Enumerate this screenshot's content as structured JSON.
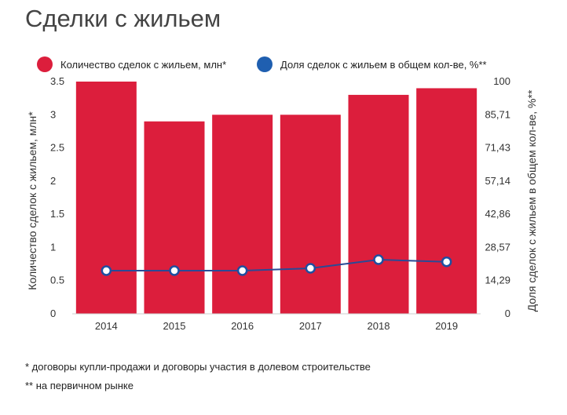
{
  "title": "Сделки с жильем",
  "footnotes": [
    "* договоры купли-продажи и договоры участия в долевом строительстве",
    "** на первичном рынке"
  ],
  "colors": {
    "bar": "#dc1e3c",
    "line": "#2a4a96",
    "marker_fill": "#ffffff",
    "marker_stroke": "#1f4fa0",
    "legend_dot_line": "#1f5fb0"
  },
  "chart_data": {
    "type": "bar",
    "categories": [
      "2014",
      "2015",
      "2016",
      "2017",
      "2018",
      "2019"
    ],
    "series": [
      {
        "name": "Количество сделок с жильем, млн*",
        "type": "bar",
        "axis": "left",
        "values": [
          3.5,
          2.9,
          3.0,
          3.0,
          3.3,
          3.4
        ]
      },
      {
        "name": "Доля сделок с жильем в общем кол-ве, %**",
        "type": "line",
        "axis": "right",
        "values": [
          18.6,
          18.6,
          18.6,
          19.6,
          23.3,
          22.4
        ]
      }
    ],
    "ylabel": "Количество сделок с жильем, млн*",
    "y2label": "Доля сделок с жильем в общем кол-ве, %**",
    "ylim": [
      0,
      3.5
    ],
    "y2lim": [
      0,
      100
    ],
    "yticks": [
      "0",
      "0.5",
      "1",
      "1.5",
      "2",
      "2.5",
      "3",
      "3.5"
    ],
    "y2ticks": [
      "0",
      "14,29",
      "28,57",
      "42,86",
      "57,14",
      "71,43",
      "85,71",
      "100"
    ],
    "legend": "top",
    "grid": false
  }
}
